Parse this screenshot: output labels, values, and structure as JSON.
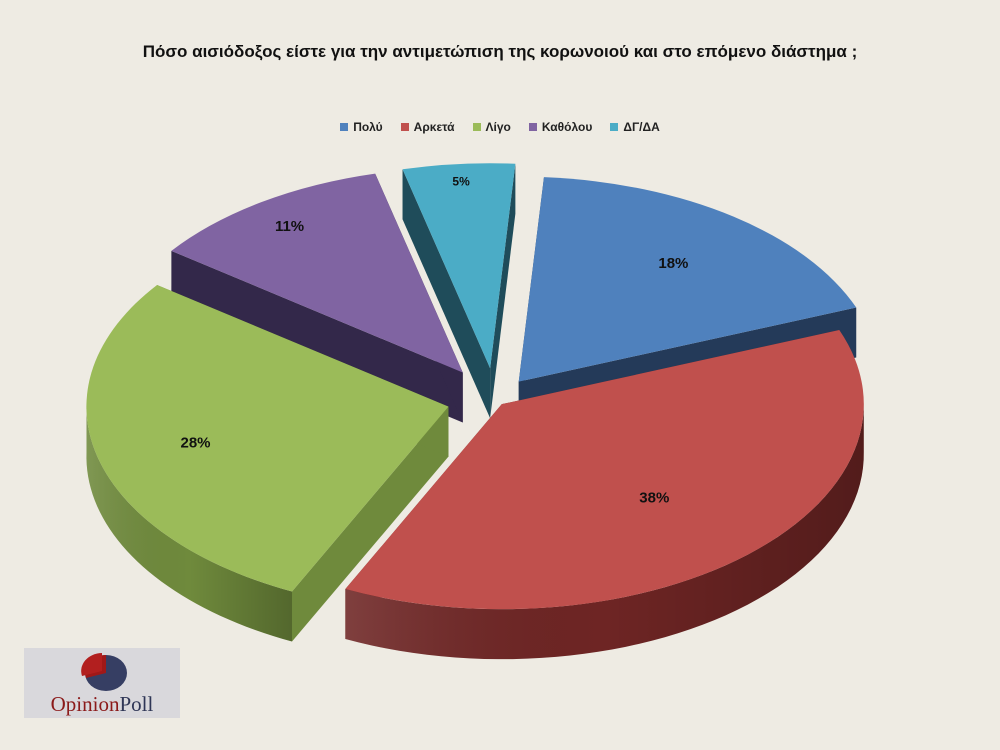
{
  "chart_data": {
    "type": "pie",
    "title": "Πόσο αισιόδοξος είστε για την αντιμετώπιση της κορωνοιού και στο επόμενο διάστημα ;",
    "categories": [
      "Πολύ",
      "Αρκετά",
      "Λίγο",
      "Καθόλου",
      "ΔΓ/ΔΑ"
    ],
    "values": [
      18,
      38,
      28,
      11,
      5
    ],
    "data_labels": [
      "18%",
      "38%",
      "28%",
      "11%",
      "5%"
    ],
    "colors": [
      "#4f81bd",
      "#c0504d",
      "#9bbb59",
      "#8064a2",
      "#4bacc6"
    ],
    "side_colors": [
      "#243a59",
      "#6e2524",
      "#6f8a3c",
      "#33284a",
      "#1f4c5a"
    ],
    "legend_position": "top",
    "style": "3d-exploded"
  },
  "logo": {
    "text_part1": "Opinion",
    "text_part2": "Poll",
    "icon": "opinion-poll-pie-icon"
  }
}
